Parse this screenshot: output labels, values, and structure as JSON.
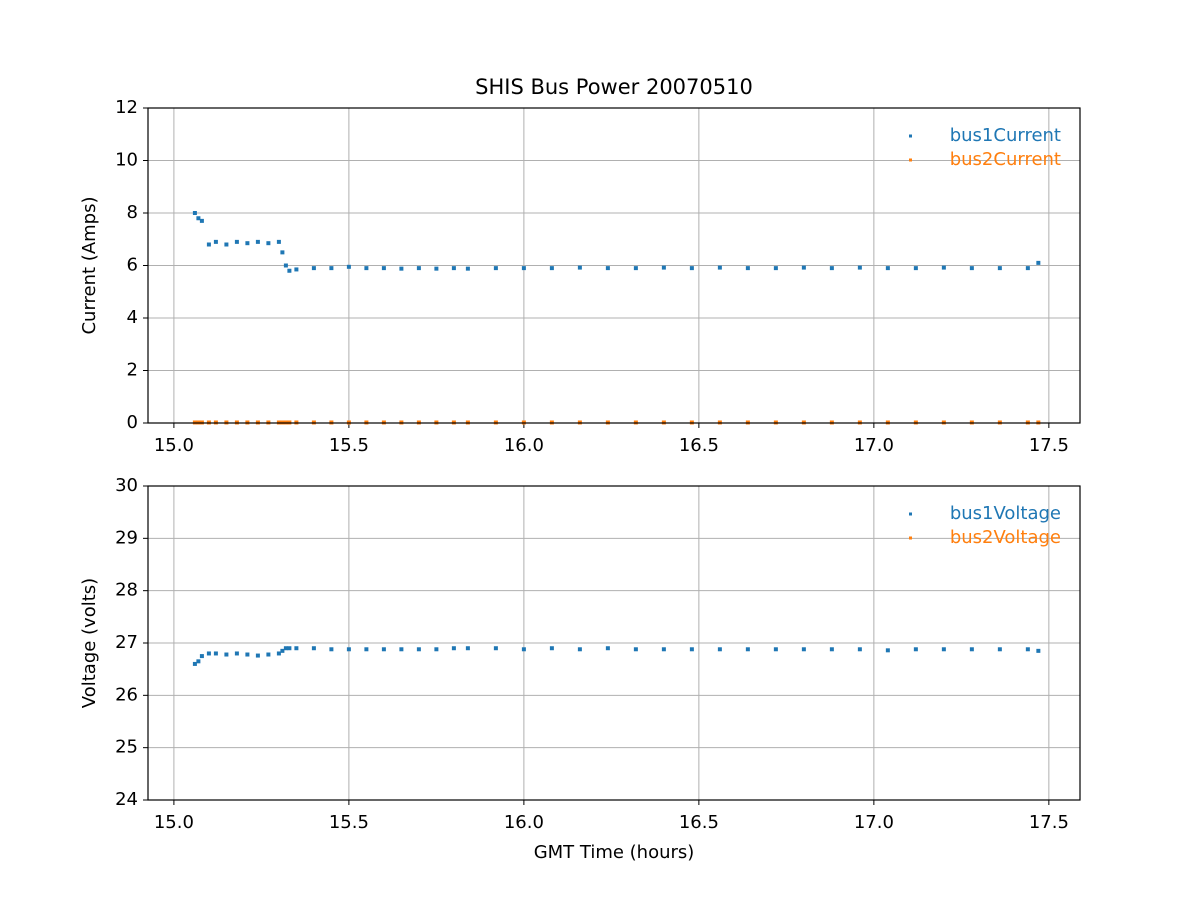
{
  "chart_data": [
    {
      "type": "scatter",
      "title": "SHIS Bus Power 20070510",
      "ylabel": "Current (Amps)",
      "x": [
        15.06,
        15.07,
        15.08,
        15.1,
        15.12,
        15.15,
        15.18,
        15.21,
        15.24,
        15.27,
        15.3,
        15.31,
        15.32,
        15.33,
        15.35,
        15.4,
        15.45,
        15.5,
        15.55,
        15.6,
        15.65,
        15.7,
        15.75,
        15.8,
        15.84,
        15.92,
        16.0,
        16.08,
        16.16,
        16.24,
        16.32,
        16.4,
        16.48,
        16.56,
        16.64,
        16.72,
        16.8,
        16.88,
        16.96,
        17.04,
        17.12,
        17.2,
        17.28,
        17.36,
        17.44,
        17.47
      ],
      "series": [
        {
          "name": "bus1Current",
          "color": "#1f77b4",
          "values": [
            8.0,
            7.8,
            7.7,
            6.8,
            6.9,
            6.8,
            6.9,
            6.85,
            6.9,
            6.85,
            6.9,
            6.5,
            6.0,
            5.8,
            5.85,
            5.9,
            5.9,
            5.95,
            5.9,
            5.9,
            5.88,
            5.9,
            5.88,
            5.9,
            5.88,
            5.9,
            5.9,
            5.9,
            5.92,
            5.9,
            5.9,
            5.92,
            5.9,
            5.92,
            5.9,
            5.9,
            5.92,
            5.9,
            5.92,
            5.9,
            5.9,
            5.92,
            5.9,
            5.9,
            5.9,
            6.1
          ]
        },
        {
          "name": "bus2Current",
          "color": "#ff7f0e",
          "values": [
            0.02,
            0.02,
            0.02,
            0.02,
            0.02,
            0.02,
            0.02,
            0.02,
            0.02,
            0.02,
            0.02,
            0.02,
            0.02,
            0.02,
            0.02,
            0.02,
            0.02,
            0.02,
            0.02,
            0.02,
            0.02,
            0.02,
            0.02,
            0.02,
            0.02,
            0.02,
            0.02,
            0.02,
            0.02,
            0.02,
            0.02,
            0.02,
            0.02,
            0.02,
            0.02,
            0.02,
            0.02,
            0.02,
            0.02,
            0.02,
            0.02,
            0.02,
            0.02,
            0.02,
            0.02,
            0.02
          ]
        }
      ],
      "xlim": [
        14.926,
        17.589
      ],
      "ylim": [
        0,
        12
      ],
      "xticks": [
        {
          "value": 15,
          "label": "15.0"
        },
        15.5,
        {
          "value": 16,
          "label": "16.0"
        },
        16.5,
        {
          "value": 17,
          "label": "17.0"
        },
        17.5
      ],
      "yticks": [
        0,
        2,
        4,
        6,
        8,
        10,
        12
      ],
      "grid": true,
      "legend": "upper right"
    },
    {
      "type": "scatter",
      "xlabel": "GMT Time (hours)",
      "ylabel": "Voltage (volts)",
      "x": [
        15.06,
        15.07,
        15.08,
        15.1,
        15.12,
        15.15,
        15.18,
        15.21,
        15.24,
        15.27,
        15.3,
        15.31,
        15.32,
        15.33,
        15.35,
        15.4,
        15.45,
        15.5,
        15.55,
        15.6,
        15.65,
        15.7,
        15.75,
        15.8,
        15.84,
        15.92,
        16.0,
        16.08,
        16.16,
        16.24,
        16.32,
        16.4,
        16.48,
        16.56,
        16.64,
        16.72,
        16.8,
        16.88,
        16.96,
        17.04,
        17.12,
        17.2,
        17.28,
        17.36,
        17.44,
        17.47
      ],
      "series": [
        {
          "name": "bus1Voltage",
          "color": "#1f77b4",
          "values": [
            26.6,
            26.65,
            26.75,
            26.8,
            26.8,
            26.78,
            26.8,
            26.78,
            26.76,
            26.78,
            26.8,
            26.85,
            26.9,
            26.9,
            26.9,
            26.9,
            26.88,
            26.88,
            26.88,
            26.88,
            26.88,
            26.88,
            26.88,
            26.9,
            26.9,
            26.9,
            26.88,
            26.9,
            26.88,
            26.9,
            26.88,
            26.88,
            26.88,
            26.88,
            26.88,
            26.88,
            26.88,
            26.88,
            26.88,
            26.86,
            26.88,
            26.88,
            26.88,
            26.88,
            26.88,
            26.85
          ]
        },
        {
          "name": "bus2Voltage",
          "color": "#ff7f0e",
          "values": [
            null,
            null,
            null,
            null,
            null,
            null,
            null,
            null,
            null,
            null,
            null,
            null,
            null,
            null,
            null,
            null,
            null,
            null,
            null,
            null,
            null,
            null,
            null,
            null,
            null,
            null,
            null,
            null,
            null,
            null,
            null,
            null,
            null,
            null,
            null,
            null,
            null,
            null,
            null,
            null,
            null,
            null,
            null,
            null,
            null,
            null
          ]
        }
      ],
      "xlim": [
        14.926,
        17.589
      ],
      "ylim": [
        24,
        30
      ],
      "xticks": [
        {
          "value": 15,
          "label": "15.0"
        },
        15.5,
        {
          "value": 16,
          "label": "16.0"
        },
        16.5,
        {
          "value": 17,
          "label": "17.0"
        },
        17.5
      ],
      "yticks": [
        24,
        25,
        26,
        27,
        28,
        29,
        30
      ],
      "grid": true,
      "legend": "upper right"
    }
  ]
}
